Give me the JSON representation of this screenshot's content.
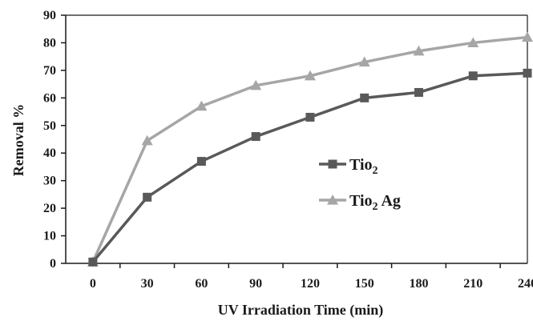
{
  "chart_data": {
    "type": "line",
    "title": "",
    "xlabel": "UV Irradiation Time (min)",
    "ylabel": "Removal %",
    "categories": [
      0,
      30,
      60,
      90,
      120,
      150,
      180,
      210,
      240
    ],
    "ylim": [
      0,
      90
    ],
    "yticks": [
      0,
      10,
      20,
      30,
      40,
      50,
      60,
      70,
      80,
      90
    ],
    "grid": false,
    "legend_position": "right-center",
    "series": [
      {
        "name": "Tio2",
        "name_base": "Tio",
        "name_sub": "2",
        "name_suffix": "",
        "marker": "square",
        "color": "#595959",
        "values": [
          0.5,
          24,
          37,
          46,
          53,
          60,
          62,
          68,
          69
        ]
      },
      {
        "name": "Tio2 Ag",
        "name_base": "Tio",
        "name_sub": "2",
        "name_suffix": " Ag",
        "marker": "triangle",
        "color": "#a6a6a6",
        "values": [
          0.5,
          44.5,
          57,
          64.5,
          68,
          73,
          77,
          80,
          82
        ]
      }
    ]
  }
}
